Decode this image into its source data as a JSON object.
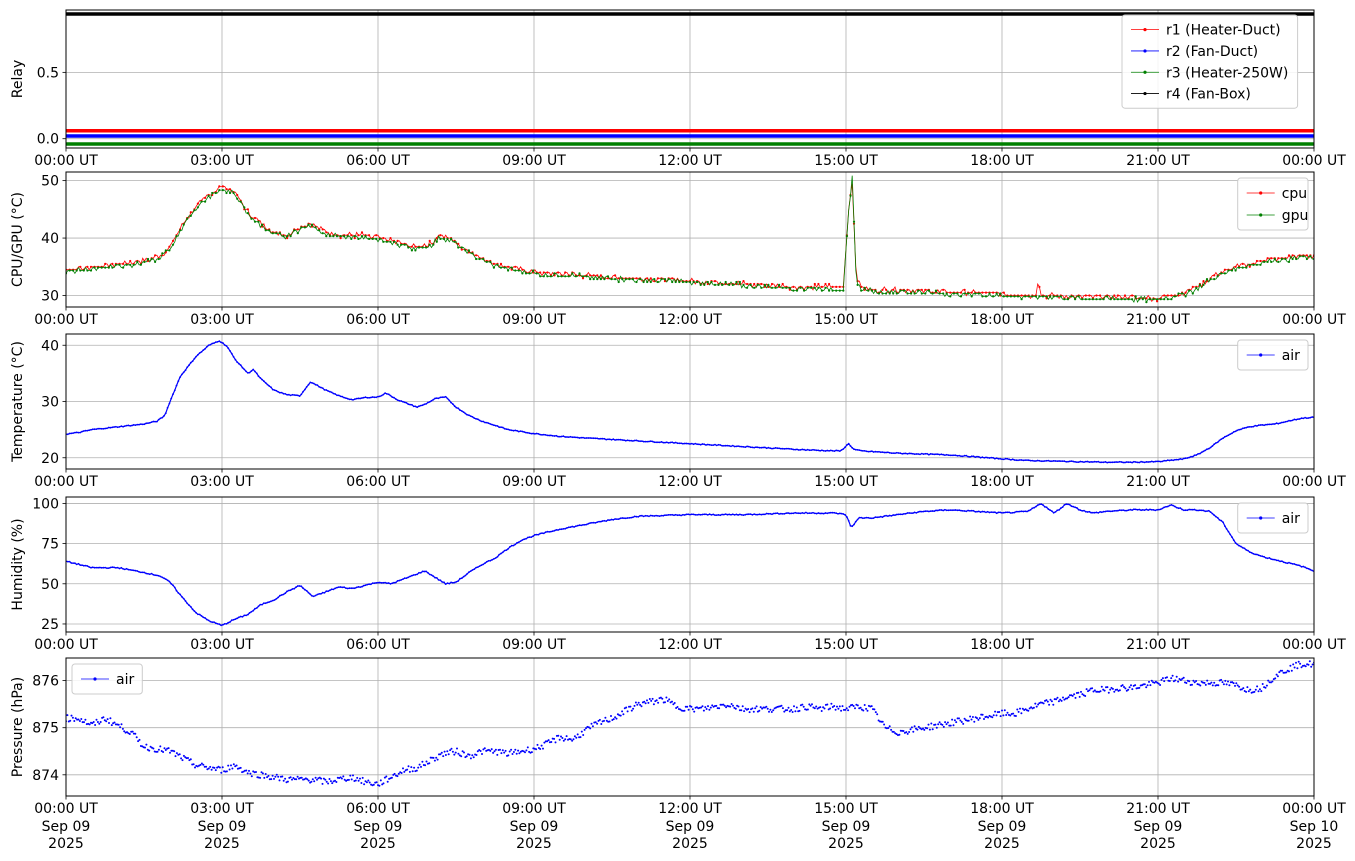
{
  "x_tick_labels": [
    "00:00 UT",
    "03:00 UT",
    "06:00 UT",
    "09:00 UT",
    "12:00 UT",
    "15:00 UT",
    "18:00 UT",
    "21:00 UT",
    "00:00 UT"
  ],
  "x_date_labels": [
    [
      "Sep 09",
      "2025"
    ],
    [
      "Sep 09",
      "2025"
    ],
    [
      "Sep 09",
      "2025"
    ],
    [
      "Sep 09",
      "2025"
    ],
    [
      "Sep 09",
      "2025"
    ],
    [
      "Sep 09",
      "2025"
    ],
    [
      "Sep 09",
      "2025"
    ],
    [
      "Sep 09",
      "2025"
    ],
    [
      "Sep 10",
      "2025"
    ]
  ],
  "chart_data": [
    {
      "type": "line",
      "ylabel": "Relay",
      "x_unit": "hours since 00:00 UT Sep 09 2025",
      "xlim": [
        0,
        24
      ],
      "ylim": [
        -0.07,
        0.97
      ],
      "yticks": [
        0.0,
        0.5
      ],
      "ytick_labels": [
        "0.0",
        "0.5"
      ],
      "grid": true,
      "legend": "upper right",
      "series": [
        {
          "name": "r1 (Heater-Duct)",
          "color": "#ff0000",
          "x": [
            0,
            24
          ],
          "y": [
            0.06,
            0.06
          ]
        },
        {
          "name": "r2 (Fan-Duct)",
          "color": "#0000ff",
          "x": [
            0,
            24
          ],
          "y": [
            0.02,
            0.02
          ]
        },
        {
          "name": "r3 (Heater-250W)",
          "color": "#008000",
          "x": [
            0,
            24
          ],
          "y": [
            -0.04,
            -0.04
          ]
        },
        {
          "name": "r4 (Fan-Box)",
          "color": "#000000",
          "x": [
            0,
            24
          ],
          "y": [
            0.94,
            0.94
          ]
        }
      ]
    },
    {
      "type": "line",
      "ylabel": "CPU/GPU (°C)",
      "x_unit": "hours since 00:00 UT Sep 09 2025",
      "xlim": [
        0,
        24
      ],
      "ylim": [
        28,
        51.5
      ],
      "yticks": [
        30,
        40,
        50
      ],
      "ytick_labels": [
        "30",
        "40",
        "50"
      ],
      "grid": true,
      "legend": "upper right",
      "series": [
        {
          "name": "cpu",
          "color": "#ff0000",
          "x": [
            0,
            0.5,
            1,
            1.5,
            1.8,
            2.0,
            2.25,
            2.5,
            2.75,
            3.0,
            3.25,
            3.5,
            3.75,
            4.0,
            4.25,
            4.5,
            4.75,
            5.0,
            5.25,
            5.5,
            5.75,
            6.0,
            6.25,
            6.5,
            6.75,
            7.0,
            7.2,
            7.4,
            7.6,
            7.8,
            8.0,
            8.25,
            8.5,
            8.75,
            9.0,
            9.5,
            10,
            10.5,
            11,
            11.5,
            12,
            12.5,
            13,
            13.5,
            14,
            14.5,
            14.95,
            15.05,
            15.12,
            15.2,
            15.3,
            15.5,
            16,
            16.5,
            17,
            17.5,
            18,
            18.5,
            18.65,
            18.7,
            18.75,
            19,
            19.5,
            20,
            20.5,
            21,
            21.25,
            21.5,
            21.75,
            22,
            22.25,
            22.5,
            22.75,
            23,
            23.25,
            23.5,
            23.75,
            24
          ],
          "y": [
            34.5,
            35.0,
            35.5,
            36.0,
            36.8,
            38.5,
            42.5,
            45.5,
            47.5,
            49.0,
            48.0,
            44.5,
            42.5,
            41.0,
            40.5,
            42.0,
            42.5,
            41.0,
            40.5,
            40.5,
            40.5,
            40.0,
            39.5,
            39.0,
            38.5,
            39.0,
            40.5,
            40.0,
            38.5,
            37.5,
            36.5,
            35.5,
            35.0,
            34.5,
            34.0,
            33.8,
            33.5,
            33.2,
            33.0,
            32.8,
            32.5,
            32.3,
            32.0,
            31.8,
            31.5,
            31.5,
            31.5,
            45.0,
            50.0,
            33.0,
            31.5,
            31.0,
            31.0,
            30.8,
            30.5,
            30.5,
            30.3,
            30.0,
            30.0,
            33.0,
            30.0,
            30.0,
            29.8,
            29.7,
            29.6,
            29.5,
            30.0,
            30.5,
            31.5,
            33.0,
            34.0,
            35.0,
            35.5,
            36.0,
            36.5,
            36.5,
            37.0,
            36.8
          ]
        },
        {
          "name": "gpu",
          "color": "#008000",
          "x": [
            0,
            0.5,
            1,
            1.5,
            1.8,
            2.0,
            2.25,
            2.5,
            2.75,
            3.0,
            3.25,
            3.5,
            3.75,
            4.0,
            4.25,
            4.5,
            4.75,
            5.0,
            5.25,
            5.5,
            5.75,
            6.0,
            6.25,
            6.5,
            6.75,
            7.0,
            7.2,
            7.4,
            7.6,
            7.8,
            8.0,
            8.25,
            8.5,
            8.75,
            9.0,
            9.5,
            10,
            10.5,
            11,
            11.5,
            12,
            12.5,
            13,
            13.5,
            14,
            14.5,
            14.95,
            15.05,
            15.12,
            15.2,
            15.3,
            15.5,
            16,
            16.5,
            17,
            17.5,
            18,
            18.5,
            19,
            19.5,
            20,
            20.5,
            21,
            21.25,
            21.5,
            21.75,
            22,
            22.25,
            22.5,
            22.75,
            23,
            23.25,
            23.5,
            23.75,
            24
          ],
          "y": [
            34.3,
            34.8,
            35.3,
            35.8,
            36.6,
            38.3,
            42.3,
            45.3,
            47.3,
            48.8,
            47.8,
            44.3,
            42.3,
            40.8,
            40.3,
            41.8,
            42.3,
            40.8,
            40.3,
            40.3,
            40.3,
            39.8,
            39.3,
            38.8,
            38.3,
            38.8,
            40.3,
            39.8,
            38.3,
            37.3,
            36.3,
            35.3,
            34.8,
            34.3,
            34.0,
            33.7,
            33.4,
            33.1,
            32.9,
            32.7,
            32.4,
            32.2,
            31.9,
            31.7,
            31.4,
            31.4,
            31.4,
            44.5,
            50.5,
            32.5,
            31.3,
            30.9,
            30.9,
            30.7,
            30.4,
            30.4,
            30.2,
            29.9,
            29.9,
            29.7,
            29.6,
            29.5,
            29.4,
            29.9,
            30.4,
            31.4,
            32.9,
            33.9,
            34.9,
            35.4,
            35.9,
            36.4,
            36.4,
            36.8,
            36.6
          ]
        }
      ]
    },
    {
      "type": "line",
      "ylabel": "Temperature (°C)",
      "x_unit": "hours since 00:00 UT Sep 09 2025",
      "xlim": [
        0,
        24
      ],
      "ylim": [
        18,
        42
      ],
      "yticks": [
        20,
        30,
        40
      ],
      "ytick_labels": [
        "20",
        "30",
        "40"
      ],
      "grid": true,
      "legend": "upper right",
      "series": [
        {
          "name": "air",
          "color": "#0000ff",
          "x": [
            0,
            0.25,
            0.5,
            1,
            1.5,
            1.75,
            1.9,
            2.0,
            2.2,
            2.5,
            2.75,
            2.95,
            3.1,
            3.25,
            3.5,
            3.6,
            3.75,
            4.0,
            4.25,
            4.5,
            4.7,
            5.0,
            5.25,
            5.5,
            5.75,
            6.0,
            6.15,
            6.4,
            6.75,
            6.9,
            7.1,
            7.3,
            7.5,
            7.75,
            8.0,
            8.5,
            9.0,
            9.5,
            10,
            11,
            12,
            13,
            14,
            14.5,
            14.9,
            15.05,
            15.15,
            15.3,
            16,
            17,
            18,
            18.5,
            19,
            19.5,
            20,
            20.5,
            21,
            21.5,
            21.75,
            22,
            22.25,
            22.5,
            22.75,
            23,
            23.25,
            23.5,
            23.75,
            24
          ],
          "y": [
            24.2,
            24.5,
            25.0,
            25.5,
            26.0,
            26.5,
            27.5,
            30.0,
            34.5,
            38.0,
            40.0,
            40.8,
            39.8,
            37.5,
            35.0,
            35.7,
            34.0,
            32.0,
            31.2,
            31.0,
            33.5,
            32.0,
            31.0,
            30.3,
            30.7,
            30.8,
            31.5,
            30.2,
            29.0,
            29.5,
            30.5,
            30.8,
            29.0,
            27.5,
            26.5,
            25.0,
            24.3,
            23.8,
            23.5,
            23.0,
            22.5,
            22.0,
            21.5,
            21.3,
            21.2,
            22.5,
            21.5,
            21.2,
            20.8,
            20.5,
            19.8,
            19.5,
            19.4,
            19.3,
            19.2,
            19.2,
            19.3,
            19.8,
            20.5,
            21.8,
            23.5,
            24.8,
            25.5,
            25.8,
            26.0,
            26.5,
            27.0,
            27.2
          ]
        }
      ]
    },
    {
      "type": "line",
      "ylabel": "Humidity (%)",
      "x_unit": "hours since 00:00 UT Sep 09 2025",
      "xlim": [
        0,
        24
      ],
      "ylim": [
        20,
        104
      ],
      "yticks": [
        25,
        50,
        75,
        100
      ],
      "ytick_labels": [
        "25",
        "50",
        "75",
        "100"
      ],
      "grid": true,
      "legend": "upper right",
      "series": [
        {
          "name": "air",
          "color": "#0000ff",
          "x": [
            0,
            0.5,
            1,
            1.5,
            1.8,
            2.0,
            2.25,
            2.5,
            2.75,
            3.0,
            3.25,
            3.5,
            3.75,
            4.0,
            4.25,
            4.5,
            4.75,
            5.0,
            5.25,
            5.5,
            5.75,
            6.0,
            6.25,
            6.5,
            6.9,
            7.1,
            7.3,
            7.5,
            7.75,
            8.0,
            8.25,
            8.5,
            8.75,
            9.0,
            9.5,
            10,
            10.5,
            11,
            12,
            13,
            14,
            14.8,
            15.0,
            15.1,
            15.25,
            15.5,
            16,
            16.5,
            17,
            17.5,
            18,
            18.5,
            18.75,
            19,
            19.25,
            19.5,
            19.75,
            20,
            20.5,
            21,
            21.25,
            21.5,
            21.75,
            22,
            22.25,
            22.5,
            22.75,
            23,
            23.25,
            23.5,
            23.75,
            24
          ],
          "y": [
            64,
            60,
            60,
            57,
            55,
            51,
            41,
            32,
            27,
            24,
            28,
            31,
            37,
            40,
            45,
            49,
            42,
            45,
            48,
            47,
            49,
            51,
            50,
            53,
            58,
            54,
            50,
            51,
            57,
            62,
            66,
            72,
            77,
            80,
            84,
            87,
            90,
            92,
            93,
            93,
            94,
            94,
            93,
            85,
            91,
            91,
            93,
            95,
            96,
            95,
            94,
            95,
            100,
            94,
            100,
            96,
            94,
            95,
            96,
            96,
            99,
            96,
            96,
            95,
            88,
            75,
            70,
            67,
            65,
            63,
            61,
            58
          ]
        }
      ]
    },
    {
      "type": "scatter",
      "ylabel": "Pressure (hPa)",
      "x_unit": "hours since 00:00 UT Sep 09 2025",
      "xlim": [
        0,
        24
      ],
      "ylim": [
        873.55,
        876.48
      ],
      "yticks": [
        874,
        875,
        876
      ],
      "ytick_labels": [
        "874",
        "875",
        "876"
      ],
      "grid": true,
      "legend": "upper left",
      "series": [
        {
          "name": "air",
          "color": "#0000ff",
          "x": [
            0,
            0.25,
            0.5,
            0.75,
            1.0,
            1.25,
            1.5,
            1.75,
            2.0,
            2.25,
            2.5,
            2.75,
            3.0,
            3.25,
            3.5,
            3.75,
            4.0,
            4.25,
            4.5,
            4.75,
            5.0,
            5.25,
            5.5,
            5.75,
            6.0,
            6.25,
            6.5,
            6.75,
            7.0,
            7.25,
            7.5,
            7.75,
            8.0,
            8.25,
            8.5,
            8.75,
            9.0,
            9.25,
            9.5,
            9.75,
            10.0,
            10.25,
            10.5,
            10.75,
            11.0,
            11.25,
            11.5,
            11.75,
            12.0,
            12.25,
            12.5,
            12.75,
            13.0,
            13.25,
            13.5,
            13.75,
            14.0,
            14.25,
            14.5,
            14.75,
            15.0,
            15.25,
            15.5,
            15.75,
            16.0,
            16.25,
            16.5,
            16.75,
            17.0,
            17.25,
            17.5,
            17.75,
            18.0,
            18.25,
            18.5,
            18.75,
            19.0,
            19.25,
            19.5,
            19.75,
            20.0,
            20.25,
            20.5,
            20.75,
            21.0,
            21.25,
            21.5,
            21.75,
            22.0,
            22.25,
            22.5,
            22.75,
            23.0,
            23.25,
            23.5,
            23.75,
            24.0
          ],
          "y": [
            875.2,
            875.2,
            875.05,
            875.2,
            875.05,
            874.9,
            874.6,
            874.55,
            874.5,
            874.35,
            874.2,
            874.15,
            874.1,
            874.2,
            874.05,
            874.0,
            873.95,
            873.9,
            873.9,
            873.9,
            873.85,
            873.9,
            873.95,
            873.85,
            873.8,
            873.95,
            874.1,
            874.15,
            874.3,
            874.45,
            874.5,
            874.4,
            874.5,
            874.5,
            874.45,
            874.5,
            874.55,
            874.65,
            874.8,
            874.75,
            874.95,
            875.1,
            875.2,
            875.35,
            875.5,
            875.55,
            875.6,
            875.45,
            875.4,
            875.4,
            875.45,
            875.5,
            875.4,
            875.4,
            875.4,
            875.4,
            875.4,
            875.45,
            875.4,
            875.45,
            875.4,
            875.45,
            875.4,
            875.0,
            874.9,
            874.95,
            875.0,
            875.05,
            875.1,
            875.15,
            875.2,
            875.25,
            875.3,
            875.3,
            875.4,
            875.5,
            875.55,
            875.65,
            875.7,
            875.8,
            875.8,
            875.85,
            875.85,
            875.9,
            875.95,
            876.05,
            876.0,
            875.95,
            875.95,
            875.95,
            875.9,
            875.8,
            875.85,
            876.1,
            876.25,
            876.35,
            876.35
          ]
        }
      ]
    }
  ]
}
